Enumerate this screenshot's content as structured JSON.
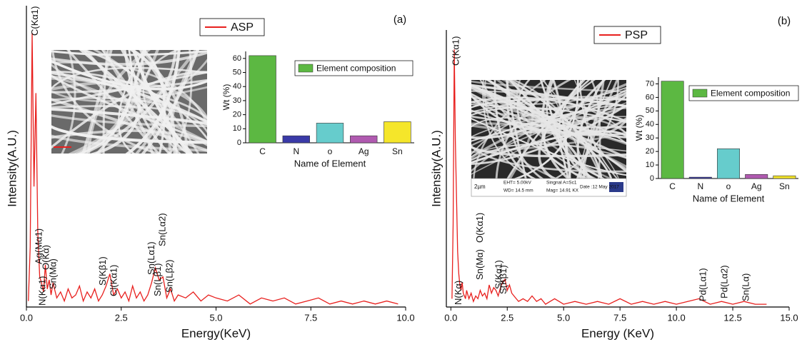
{
  "chart_data": [
    {
      "type": "line",
      "panel_label": "(a)",
      "xlabel": "Energy(KeV)",
      "ylabel": "Intensity(A.U.)",
      "xlim": [
        0,
        10
      ],
      "ylim": [
        0,
        100
      ],
      "xticks": [
        {
          "value": 0,
          "label": "0.0"
        },
        {
          "value": 2.5,
          "label": "2.5"
        },
        {
          "value": 5,
          "label": "5.0"
        },
        {
          "value": 7.5,
          "label": "7.5"
        },
        {
          "value": 10,
          "label": "10.0"
        }
      ],
      "x": [
        0.05,
        0.1,
        0.15,
        0.2,
        0.25,
        0.3,
        0.35,
        0.4,
        0.45,
        0.5,
        0.55,
        0.6,
        0.65,
        0.7,
        0.8,
        0.9,
        1.0,
        1.1,
        1.2,
        1.3,
        1.4,
        1.5,
        1.6,
        1.7,
        1.8,
        1.9,
        2.0,
        2.1,
        2.2,
        2.3,
        2.4,
        2.5,
        2.6,
        2.7,
        2.8,
        2.9,
        3.0,
        3.1,
        3.2,
        3.3,
        3.4,
        3.5,
        3.6,
        3.7,
        3.8,
        3.9,
        4.0,
        4.2,
        4.4,
        4.6,
        4.8,
        5.0,
        5.3,
        5.6,
        5.9,
        6.2,
        6.5,
        6.8,
        7.1,
        7.4,
        7.7,
        8.0,
        8.3,
        8.6,
        8.9,
        9.2,
        9.5,
        9.8
      ],
      "series": [
        {
          "name": "ASP",
          "color": "#e8201e",
          "values": [
            2,
            20,
            91,
            40,
            71,
            25,
            10,
            8,
            5,
            14,
            6,
            9,
            4,
            8,
            3,
            5,
            2,
            6,
            3,
            4,
            7,
            2,
            5,
            3,
            6,
            2,
            4,
            7,
            11,
            4,
            6,
            3,
            5,
            2,
            7,
            3,
            5,
            2,
            4,
            8,
            13,
            9,
            10,
            3,
            6,
            2,
            4,
            3,
            5,
            2,
            4,
            3,
            2,
            4,
            1,
            3,
            2,
            3,
            1,
            2,
            3,
            1,
            2,
            1,
            2,
            1,
            2,
            1
          ]
        }
      ],
      "annotation_color": "#2b2b9b",
      "peak_labels": [
        {
          "text": "C(Kα1)",
          "x": 0.24
        },
        {
          "text": "Ag(Mα1)",
          "x": 0.34
        },
        {
          "text": "O(Kα)",
          "x": 0.53
        },
        {
          "text": "N(Kα1)",
          "x": 0.43
        },
        {
          "text": "Sn(Mα)",
          "x": 0.72
        },
        {
          "text": "S(Kβ1)",
          "x": 2.03
        },
        {
          "text": "Cl(Kα1)",
          "x": 2.32
        },
        {
          "text": "Sn(Lα1)",
          "x": 3.31
        },
        {
          "text": "Sn(Lβ1)",
          "x": 3.48
        },
        {
          "text": "Sn(Lα2)",
          "x": 3.6
        },
        {
          "text": "Sn(Lβ2)",
          "x": 3.79
        }
      ]
    },
    {
      "type": "bar",
      "xlabel": "Name of Element",
      "ylabel": "Wt (%)",
      "categories": [
        "C",
        "N",
        "o",
        "Ag",
        "Sn"
      ],
      "ylim": [
        0,
        65
      ],
      "yticks": [
        0,
        10,
        20,
        30,
        40,
        50,
        60
      ],
      "series": [
        {
          "name": "Element composition",
          "color": "#5cb842",
          "values": [
            62,
            5,
            14,
            5,
            15
          ]
        }
      ],
      "bar_colors": [
        "#5cb842",
        "#3a3aa8",
        "#66cccc",
        "#b05ab0",
        "#f5e62a"
      ]
    },
    {
      "type": "line",
      "panel_label": "(b)",
      "xlabel": "Energy (KeV)",
      "ylabel": "Intensity(A.U.)",
      "xlim": [
        -0.2,
        15
      ],
      "ylim": [
        0,
        100
      ],
      "xticks": [
        {
          "value": 0,
          "label": "0.0"
        },
        {
          "value": 2.5,
          "label": "2.5"
        },
        {
          "value": 5,
          "label": "5.0"
        },
        {
          "value": 7.5,
          "label": "7.5"
        },
        {
          "value": 10,
          "label": "10.0"
        },
        {
          "value": 12.5,
          "label": "12.5"
        },
        {
          "value": 15,
          "label": "15.0"
        }
      ],
      "x": [
        0.05,
        0.1,
        0.15,
        0.2,
        0.25,
        0.3,
        0.35,
        0.4,
        0.45,
        0.5,
        0.55,
        0.6,
        0.65,
        0.7,
        0.8,
        0.9,
        1.0,
        1.1,
        1.2,
        1.3,
        1.4,
        1.5,
        1.6,
        1.7,
        1.8,
        1.9,
        2.0,
        2.1,
        2.2,
        2.3,
        2.4,
        2.5,
        2.6,
        2.7,
        2.8,
        2.9,
        3.0,
        3.2,
        3.4,
        3.6,
        3.8,
        4.0,
        4.2,
        4.4,
        4.6,
        4.8,
        5.0,
        5.5,
        6.0,
        6.5,
        7.0,
        7.5,
        8.0,
        8.5,
        9.0,
        9.5,
        10.0,
        10.5,
        11.0,
        11.5,
        12.0,
        12.5,
        13.0,
        13.5,
        14.0
      ],
      "series": [
        {
          "name": "PSP",
          "color": "#e8201e",
          "values": [
            3,
            30,
            93,
            60,
            40,
            20,
            12,
            8,
            6,
            9,
            5,
            4,
            3,
            6,
            3,
            5,
            2,
            4,
            3,
            6,
            4,
            5,
            3,
            8,
            5,
            7,
            6,
            4,
            7,
            9,
            10,
            6,
            8,
            5,
            4,
            3,
            2,
            3,
            2,
            4,
            2,
            3,
            1,
            2,
            3,
            2,
            1,
            2,
            1,
            2,
            1,
            3,
            1,
            2,
            1,
            2,
            1,
            2,
            3,
            1,
            2,
            1,
            2,
            1,
            1
          ]
        }
      ],
      "annotation_color": "#2b2b9b",
      "peak_labels": [
        {
          "text": "C(Kα1)",
          "x": 0.25
        },
        {
          "text": "N(Kα)",
          "x": 0.35
        },
        {
          "text": "Sn(Mα)",
          "x": 1.3
        },
        {
          "text": "O(Kα1)",
          "x": 1.3
        },
        {
          "text": "S(Kα1)",
          "x": 2.15
        },
        {
          "text": "S(Kβ1)",
          "x": 2.35
        },
        {
          "text": "Pd(Lα1)",
          "x": 11.2
        },
        {
          "text": "Pd(Lα2)",
          "x": 12.15
        },
        {
          "text": "Sn(Lα)",
          "x": 13.1
        }
      ],
      "inset_image_text": [
        "2µm",
        "EHT= 5.00kV",
        "WD= 14.5 mm",
        "Singnal A=Sc1",
        "Mag= 14.91 KX",
        "Date :12 May 2017"
      ]
    },
    {
      "type": "bar",
      "xlabel": "Name of Element",
      "ylabel": "Wt (%)",
      "categories": [
        "C",
        "N",
        "o",
        "Ag",
        "Sn"
      ],
      "ylim": [
        0,
        75
      ],
      "yticks": [
        0,
        10,
        20,
        30,
        40,
        50,
        60,
        70
      ],
      "series": [
        {
          "name": "Element composition",
          "color": "#5cb842",
          "values": [
            72,
            1,
            22,
            3,
            2
          ]
        }
      ],
      "bar_colors": [
        "#5cb842",
        "#3a3aa8",
        "#66cccc",
        "#b05ab0",
        "#f5e62a"
      ]
    }
  ]
}
